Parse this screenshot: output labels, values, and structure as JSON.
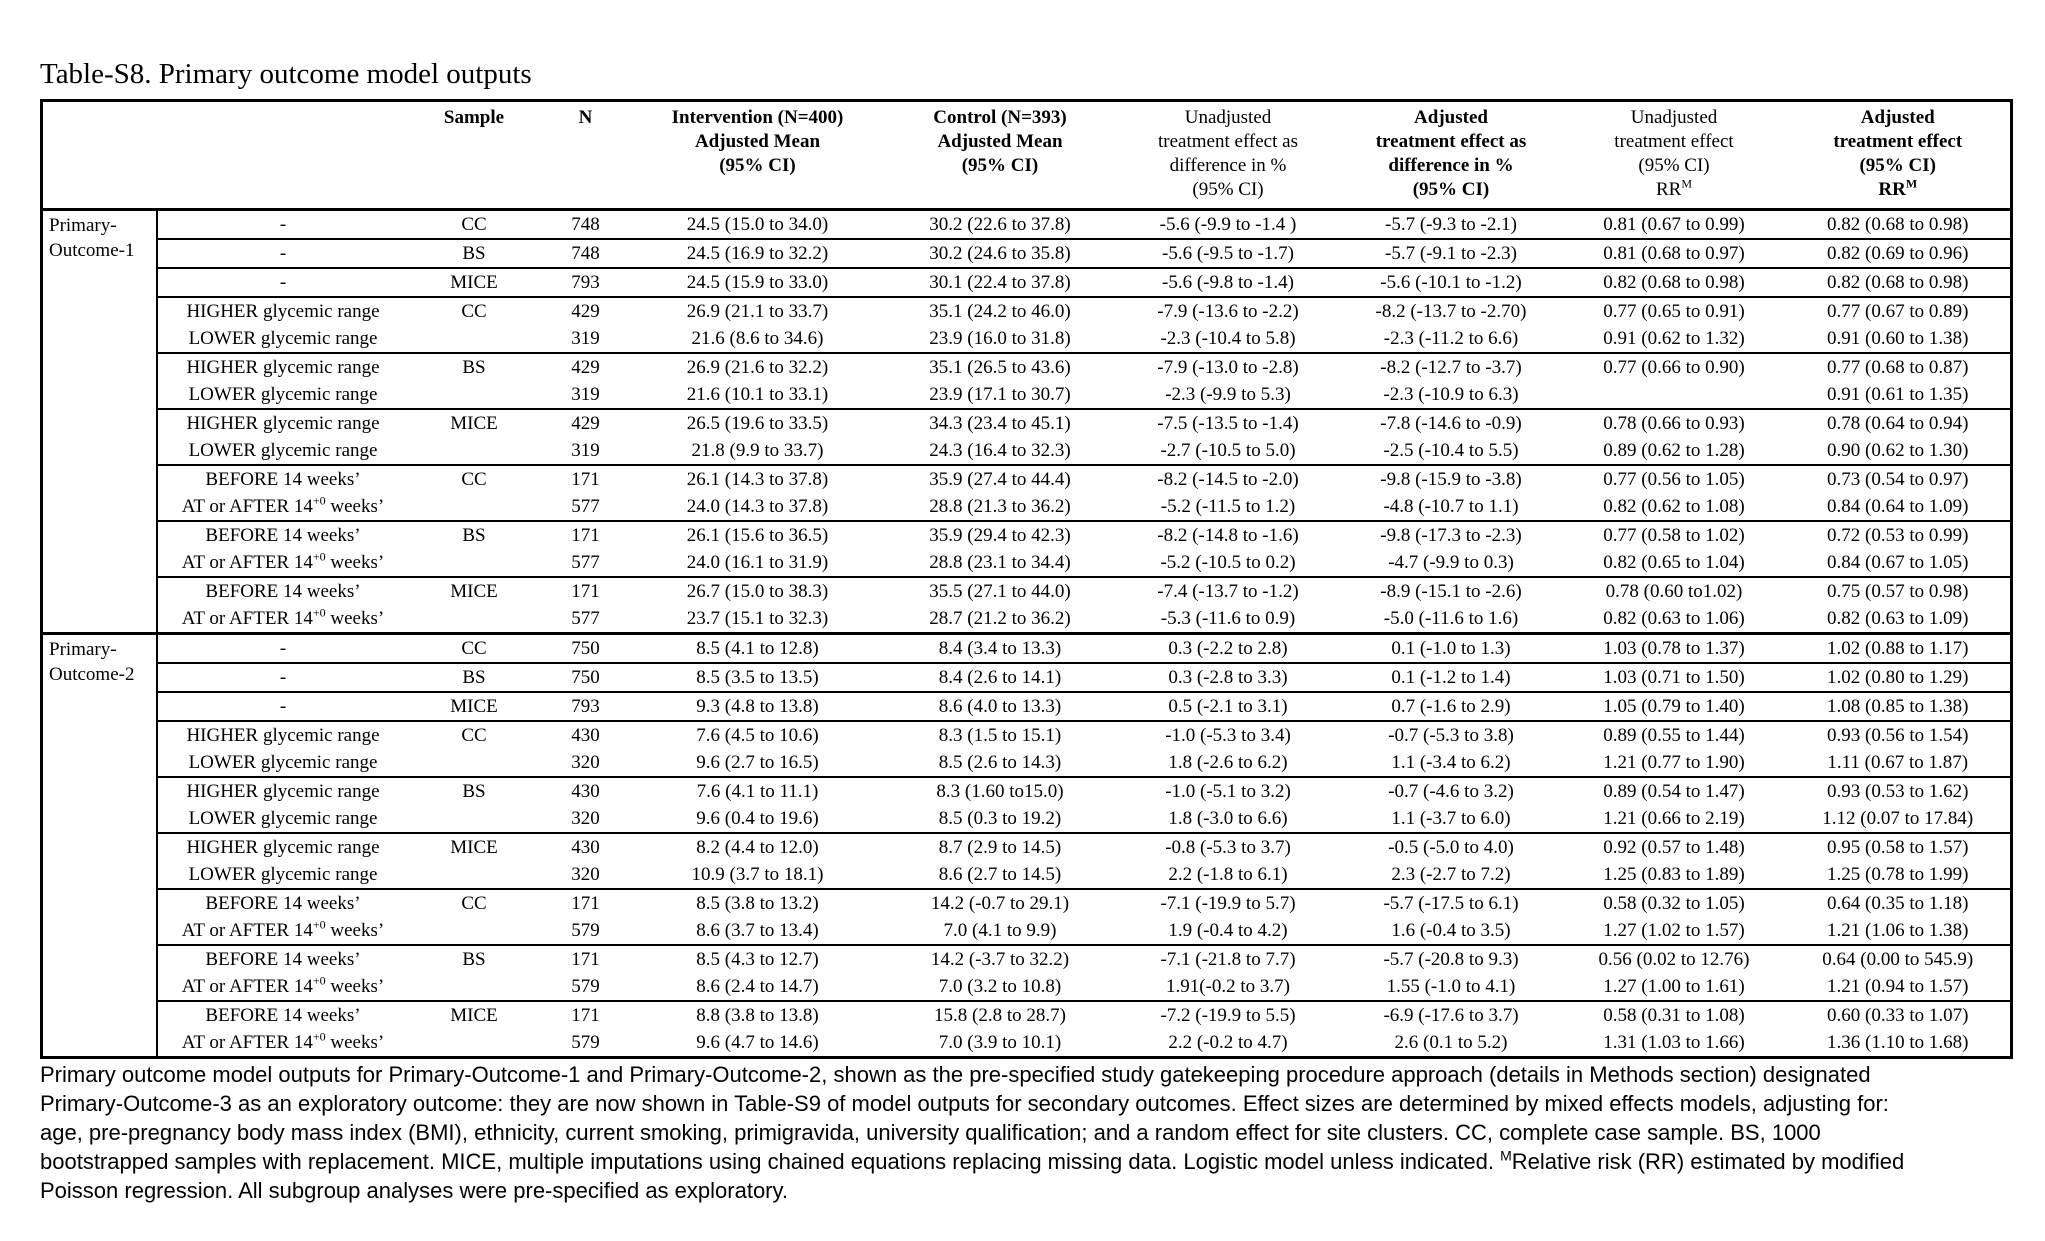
{
  "header": {
    "title": "Table-S8. Primary outcome model outputs"
  },
  "table": {
    "columns": [
      [],
      [
        "Sample"
      ],
      [
        "N"
      ],
      [
        "Intervention (N=400)",
        "Adjusted Mean",
        "(95% CI)"
      ],
      [
        "Control (N=393)",
        "Adjusted Mean",
        "(95% CI)"
      ],
      [
        "Unadjusted",
        "treatment effect as",
        "difference in %",
        "(95% CI)"
      ],
      [
        "Adjusted",
        "treatment effect as",
        "difference in %",
        "(95% CI)"
      ],
      [
        "Unadjusted",
        "treatment effect",
        "(95% CI)",
        {
          "text": "RR",
          "sup": "M"
        }
      ],
      [
        "Adjusted",
        "treatment effect",
        "(95% CI)",
        {
          "text": "RR",
          "sup": "M"
        }
      ]
    ],
    "groups": [
      {
        "label": "Primary-Outcome-1",
        "blocks": [
          {
            "sample": "CC",
            "rows": [
              [
                "-",
                748,
                "24.5 (15.0 to 34.0)",
                "30.2 (22.6 to 37.8)",
                "-5.6 (-9.9 to -1.4 )",
                "-5.7 (-9.3 to -2.1)",
                "0.81 (0.67 to 0.99)",
                "0.82 (0.68 to 0.98)"
              ]
            ]
          },
          {
            "sample": "BS",
            "rows": [
              [
                "-",
                748,
                "24.5 (16.9 to 32.2)",
                "30.2 (24.6 to 35.8)",
                "-5.6 (-9.5 to -1.7)",
                "-5.7 (-9.1 to -2.3)",
                "0.81 (0.68 to 0.97)",
                "0.82 (0.69 to 0.96)"
              ]
            ]
          },
          {
            "sample": "MICE",
            "rows": [
              [
                "-",
                793,
                "24.5 (15.9 to 33.0)",
                "30.1 (22.4 to 37.8)",
                "-5.6 (-9.8 to -1.4)",
                "-5.6 (-10.1 to -1.2)",
                "0.82 (0.68 to 0.98)",
                "0.82 (0.68 to 0.98)"
              ]
            ]
          },
          {
            "sample": "CC",
            "rows": [
              [
                "HIGHER glycemic range",
                429,
                "26.9 (21.1 to 33.7)",
                "35.1 (24.2 to 46.0)",
                "-7.9 (-13.6 to -2.2)",
                "-8.2 (-13.7 to -2.70)",
                "0.77 (0.65 to 0.91)",
                "0.77 (0.67 to 0.89)"
              ],
              [
                "LOWER glycemic range",
                319,
                "21.6 (8.6 to 34.6)",
                "23.9 (16.0 to 31.8)",
                "-2.3 (-10.4 to 5.8)",
                "-2.3 (-11.2 to 6.6)",
                "0.91 (0.62 to 1.32)",
                "0.91 (0.60 to 1.38)"
              ]
            ]
          },
          {
            "sample": "BS",
            "rows": [
              [
                "HIGHER glycemic range",
                429,
                "26.9 (21.6 to 32.2)",
                "35.1 (26.5 to 43.6)",
                "-7.9 (-13.0 to -2.8)",
                "-8.2 (-12.7 to -3.7)",
                "0.77 (0.66 to 0.90)",
                "0.77 (0.68 to 0.87)"
              ],
              [
                "LOWER glycemic range",
                319,
                "21.6 (10.1 to 33.1)",
                "23.9 (17.1 to 30.7)",
                "-2.3 (-9.9 to 5.3)",
                "-2.3 (-10.9 to 6.3)",
                null,
                "0.91 (0.61 to 1.35)"
              ]
            ]
          },
          {
            "sample": "MICE",
            "rows": [
              [
                "HIGHER glycemic range",
                429,
                "26.5 (19.6 to 33.5)",
                "34.3 (23.4 to 45.1)",
                "-7.5 (-13.5 to -1.4)",
                "-7.8 (-14.6 to -0.9)",
                "0.78 (0.66 to 0.93)",
                "0.78 (0.64 to 0.94)"
              ],
              [
                "LOWER glycemic range",
                319,
                "21.8 (9.9 to 33.7)",
                "24.3 (16.4 to 32.3)",
                "-2.7 (-10.5 to 5.0)",
                "-2.5 (-10.4 to 5.5)",
                "0.89 (0.62 to 1.28)",
                "0.90 (0.62 to 1.30)"
              ]
            ]
          },
          {
            "sample": "CC",
            "rows": [
              [
                "BEFORE 14 weeks’",
                171,
                "26.1 (14.3 to 37.8)",
                "35.9 (27.4 to 44.4)",
                "-8.2 (-14.5 to -2.0)",
                "-9.8 (-15.9 to -3.8)",
                "0.77 (0.56 to 1.05)",
                "0.73 (0.54 to 0.97)"
              ],
              [
                {
                  "text": "AT or AFTER 14",
                  "sup": "+0",
                  "tail": " weeks’"
                },
                577,
                "24.0 (14.3 to 37.8)",
                "28.8 (21.3 to 36.2)",
                "-5.2 (-11.5 to 1.2)",
                "-4.8 (-10.7 to 1.1)",
                "0.82 (0.62 to 1.08)",
                "0.84 (0.64 to 1.09)"
              ]
            ]
          },
          {
            "sample": "BS",
            "rows": [
              [
                "BEFORE 14 weeks’",
                171,
                "26.1 (15.6 to 36.5)",
                "35.9 (29.4 to 42.3)",
                "-8.2 (-14.8 to -1.6)",
                "-9.8 (-17.3 to -2.3)",
                "0.77 (0.58 to 1.02)",
                "0.72 (0.53 to 0.99)"
              ],
              [
                {
                  "text": "AT or AFTER 14",
                  "sup": "+0",
                  "tail": " weeks’"
                },
                577,
                "24.0 (16.1 to 31.9)",
                "28.8 (23.1 to 34.4)",
                "-5.2 (-10.5 to 0.2)",
                "-4.7 (-9.9 to 0.3)",
                "0.82 (0.65 to 1.04)",
                "0.84 (0.67 to 1.05)"
              ]
            ]
          },
          {
            "sample": "MICE",
            "rows": [
              [
                "BEFORE 14 weeks’",
                171,
                "26.7 (15.0 to 38.3)",
                "35.5 (27.1 to 44.0)",
                "-7.4 (-13.7 to -1.2)",
                "-8.9 (-15.1 to -2.6)",
                "0.78 (0.60 to1.02)",
                "0.75 (0.57 to 0.98)"
              ],
              [
                {
                  "text": "AT or AFTER 14",
                  "sup": "+0",
                  "tail": " weeks’"
                },
                577,
                "23.7 (15.1 to 32.3)",
                "28.7 (21.2 to 36.2)",
                "-5.3 (-11.6 to 0.9)",
                "-5.0 (-11.6 to 1.6)",
                "0.82 (0.63 to 1.06)",
                "0.82 (0.63 to 1.09)"
              ]
            ]
          }
        ]
      },
      {
        "label": "Primary-Outcome-2",
        "blocks": [
          {
            "sample": "CC",
            "rows": [
              [
                "-",
                750,
                "8.5 (4.1 to 12.8)",
                "8.4 (3.4 to 13.3)",
                "0.3 (-2.2 to 2.8)",
                "0.1 (-1.0 to 1.3)",
                "1.03 (0.78 to 1.37)",
                "1.02 (0.88 to 1.17)"
              ]
            ]
          },
          {
            "sample": "BS",
            "rows": [
              [
                "-",
                750,
                "8.5 (3.5 to 13.5)",
                "8.4 (2.6 to 14.1)",
                "0.3 (-2.8 to 3.3)",
                "0.1 (-1.2 to 1.4)",
                "1.03 (0.71 to 1.50)",
                "1.02 (0.80 to 1.29)"
              ]
            ]
          },
          {
            "sample": "MICE",
            "rows": [
              [
                "-",
                793,
                "9.3 (4.8 to 13.8)",
                "8.6 (4.0 to 13.3)",
                "0.5 (-2.1 to 3.1)",
                "0.7 (-1.6 to 2.9)",
                "1.05 (0.79 to 1.40)",
                "1.08 (0.85 to 1.38)"
              ]
            ]
          },
          {
            "sample": "CC",
            "rows": [
              [
                "HIGHER glycemic range",
                430,
                "7.6 (4.5 to 10.6)",
                "8.3 (1.5 to 15.1)",
                "-1.0 (-5.3 to 3.4)",
                "-0.7 (-5.3 to 3.8)",
                "0.89 (0.55 to 1.44)",
                "0.93 (0.56 to 1.54)"
              ],
              [
                "LOWER glycemic range",
                320,
                "9.6 (2.7 to 16.5)",
                "8.5 (2.6 to 14.3)",
                "1.8 (-2.6 to 6.2)",
                "1.1 (-3.4 to 6.2)",
                "1.21 (0.77 to 1.90)",
                "1.11 (0.67 to 1.87)"
              ]
            ]
          },
          {
            "sample": "BS",
            "rows": [
              [
                "HIGHER glycemic range",
                430,
                "7.6 (4.1 to 11.1)",
                "8.3 (1.60 to15.0)",
                "-1.0 (-5.1 to 3.2)",
                "-0.7 (-4.6 to 3.2)",
                "0.89 (0.54 to 1.47)",
                "0.93 (0.53 to 1.62)"
              ],
              [
                "LOWER glycemic range",
                320,
                "9.6 (0.4 to 19.6)",
                "8.5 (0.3 to 19.2)",
                "1.8 (-3.0 to 6.6)",
                "1.1 (-3.7 to 6.0)",
                "1.21 (0.66 to 2.19)",
                "1.12 (0.07 to 17.84)"
              ]
            ]
          },
          {
            "sample": "MICE",
            "rows": [
              [
                "HIGHER glycemic range",
                430,
                "8.2 (4.4 to 12.0)",
                "8.7 (2.9 to 14.5)",
                "-0.8 (-5.3 to 3.7)",
                "-0.5 (-5.0 to 4.0)",
                "0.92 (0.57 to 1.48)",
                "0.95 (0.58 to 1.57)"
              ],
              [
                "LOWER glycemic range",
                320,
                "10.9 (3.7 to 18.1)",
                "8.6 (2.7 to 14.5)",
                "2.2 (-1.8 to 6.1)",
                "2.3 (-2.7 to 7.2)",
                "1.25 (0.83 to 1.89)",
                "1.25 (0.78 to 1.99)"
              ]
            ]
          },
          {
            "sample": "CC",
            "rows": [
              [
                "BEFORE 14 weeks’",
                171,
                "8.5 (3.8 to 13.2)",
                "14.2 (-0.7 to 29.1)",
                "-7.1 (-19.9 to 5.7)",
                "-5.7 (-17.5 to 6.1)",
                "0.58 (0.32 to 1.05)",
                "0.64 (0.35 to 1.18)"
              ],
              [
                {
                  "text": "AT or AFTER 14",
                  "sup": "+0",
                  "tail": " weeks’"
                },
                579,
                "8.6 (3.7 to 13.4)",
                "7.0 (4.1 to 9.9)",
                "1.9 (-0.4 to 4.2)",
                "1.6 (-0.4 to 3.5)",
                "1.27 (1.02 to 1.57)",
                "1.21 (1.06 to 1.38)"
              ]
            ]
          },
          {
            "sample": "BS",
            "rows": [
              [
                "BEFORE 14 weeks’",
                171,
                "8.5 (4.3 to 12.7)",
                "14.2 (-3.7 to 32.2)",
                "-7.1 (-21.8 to 7.7)",
                "-5.7 (-20.8 to 9.3)",
                "0.56 (0.02 to 12.76)",
                "0.64 (0.00 to 545.9)"
              ],
              [
                {
                  "text": "AT or AFTER 14",
                  "sup": "+0",
                  "tail": " weeks’"
                },
                579,
                "8.6 (2.4 to 14.7)",
                "7.0 (3.2 to 10.8)",
                "1.91(-0.2 to 3.7)",
                "1.55 (-1.0 to 4.1)",
                "1.27 (1.00 to 1.61)",
                "1.21 (0.94 to 1.57)"
              ]
            ]
          },
          {
            "sample": "MICE",
            "rows": [
              [
                "BEFORE 14 weeks’",
                171,
                "8.8 (3.8 to 13.8)",
                "15.8 (2.8 to 28.7)",
                "-7.2 (-19.9 to 5.5)",
                "-6.9 (-17.6 to 3.7)",
                "0.58 (0.31 to 1.08)",
                "0.60 (0.33 to 1.07)"
              ],
              [
                {
                  "text": "AT or AFTER 14",
                  "sup": "+0",
                  "tail": " weeks’"
                },
                579,
                "9.6 (4.7 to 14.6)",
                "7.0 (3.9 to 10.1)",
                "2.2 (-0.2 to 4.7)",
                "2.6 (0.1 to 5.2)",
                "1.31 (1.03 to 1.66)",
                "1.36 (1.10 to 1.68)"
              ]
            ]
          }
        ]
      }
    ]
  },
  "footnote": {
    "text": "Primary outcome model outputs for Primary-Outcome-1 and Primary-Outcome-2, shown as the pre-specified study gatekeeping procedure approach (details in Methods section) designated Primary-Outcome-3 as an exploratory outcome: they are now shown in Table-S9 of model outputs for secondary outcomes. Effect sizes are determined by mixed effects models, adjusting for: age, pre-pregnancy body mass index (BMI), ethnicity, current smoking, primigravida, university qualification; and a random effect for site clusters. CC, complete case sample. BS, 1000 bootstrapped samples with replacement. MICE, multiple imputations using chained equations replacing missing data. Logistic model unless indicated. ",
    "sup": "M",
    "tail": "Relative risk (RR) estimated by modified Poisson regression. All subgroup analyses were pre-specified as exploratory."
  }
}
